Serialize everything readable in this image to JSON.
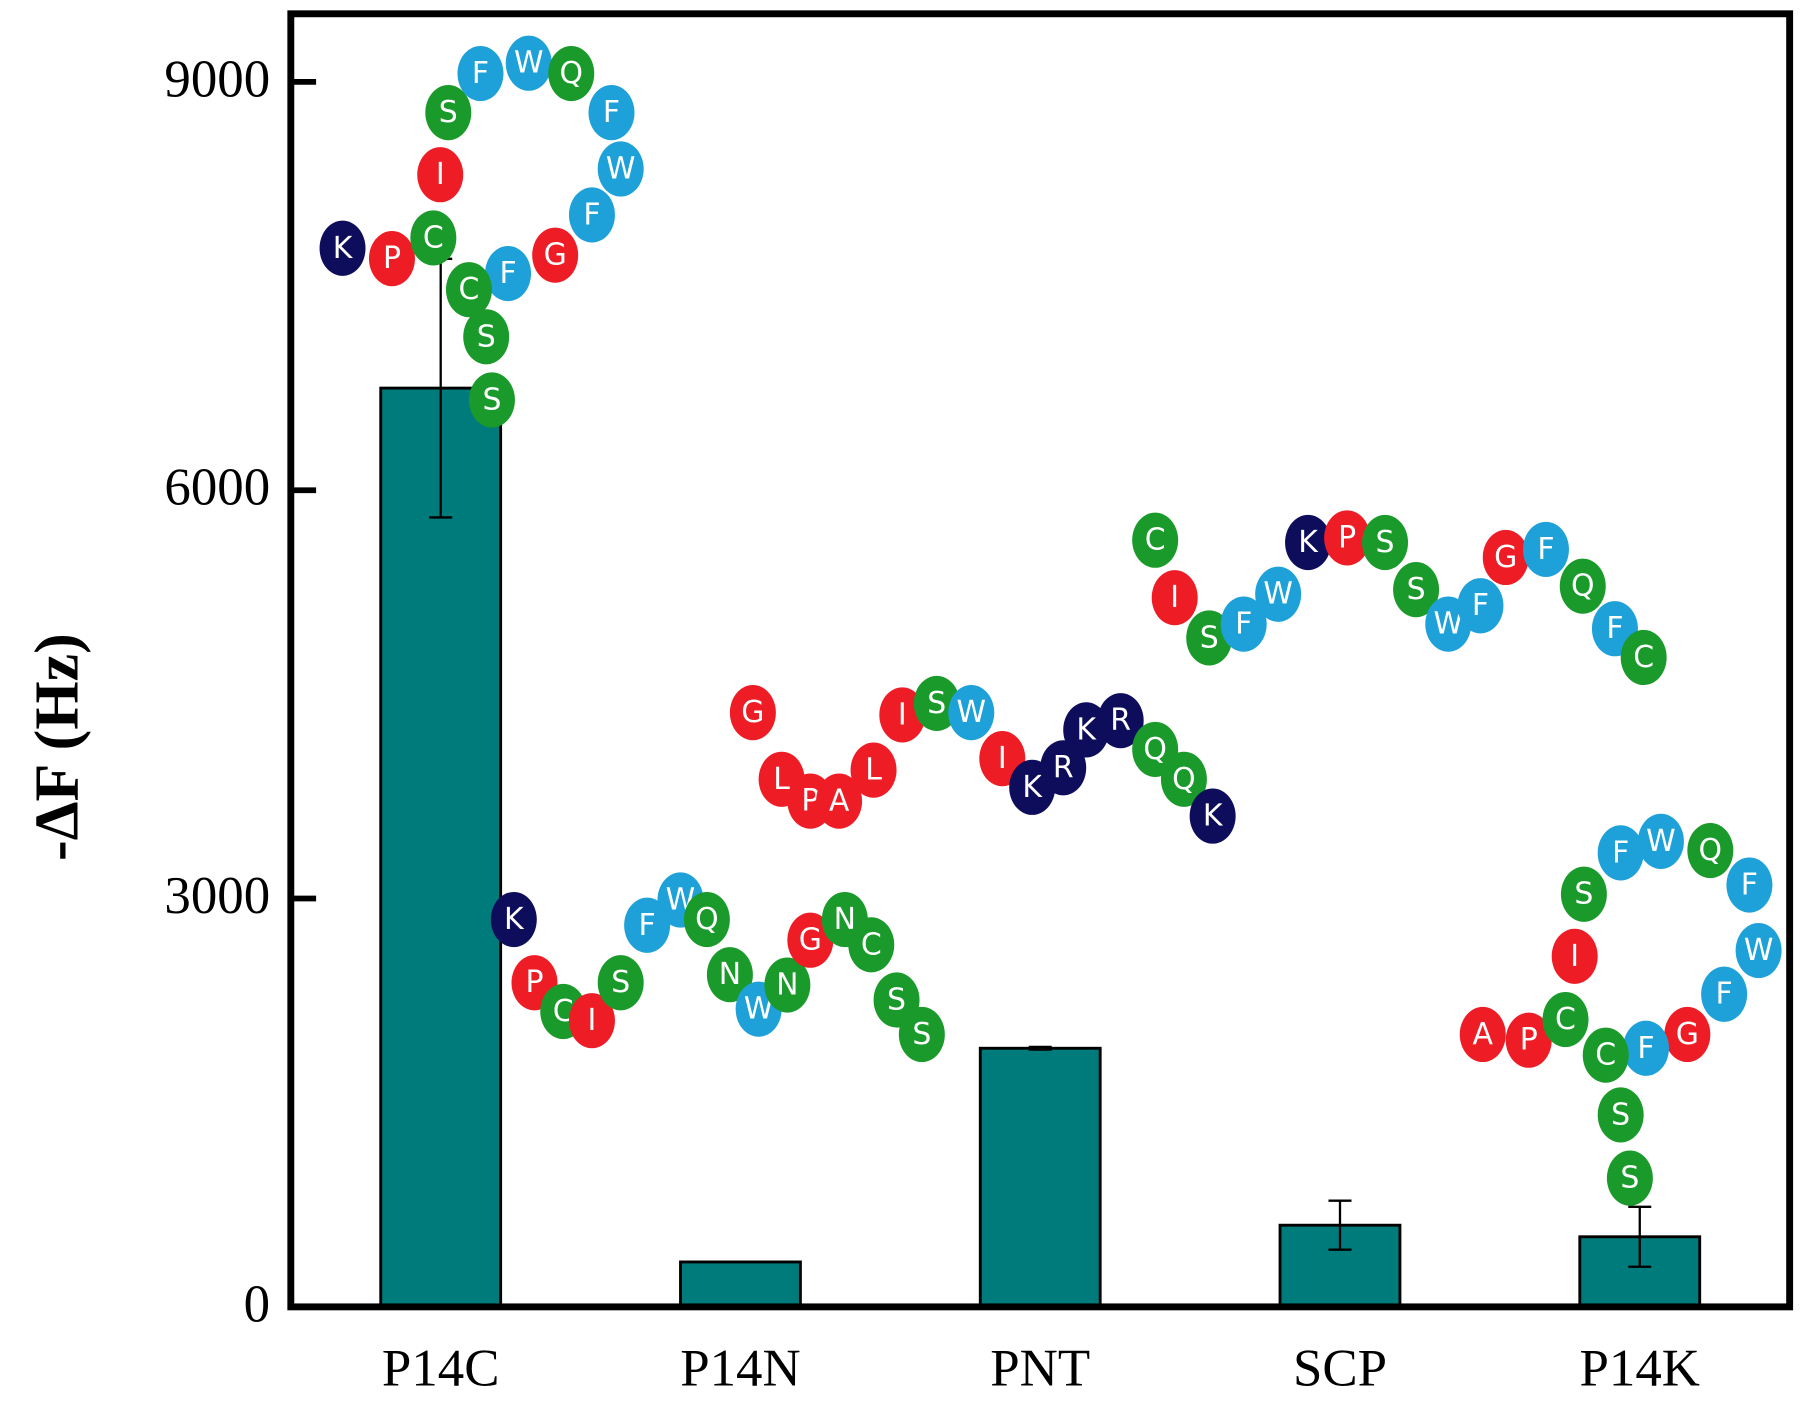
{
  "chart_data": {
    "type": "bar",
    "y_label": "-ΔF (Hz)",
    "categories": [
      "P14C",
      "P14N",
      "PNT",
      "SCP",
      "P14K"
    ],
    "values": [
      6750,
      330,
      1900,
      600,
      515
    ],
    "errors": [
      950,
      null,
      10,
      180,
      220
    ],
    "color": "#007b7b",
    "ylim": [
      0,
      9500
    ],
    "yticks": [
      0,
      3000,
      6000,
      9000
    ],
    "residue_colors": {
      "K": "#0d0d5c",
      "R": "#0d0d5c",
      "P": "#ee1c25",
      "I": "#ee1c25",
      "G": "#ee1c25",
      "A": "#ee1c25",
      "L": "#ee1c25",
      "C": "#1a9a2a",
      "S": "#1a9a2a",
      "N": "#1a9a2a",
      "Q": "#1a9a2a",
      "F": "#1ea0d8",
      "W": "#1ea0d8"
    },
    "peptides": [
      {
        "sequence": [
          "K",
          "P",
          "C",
          "I",
          "S",
          "F",
          "W",
          "Q",
          "F",
          "W",
          "F",
          "G",
          "F",
          "C",
          "S",
          "S"
        ]
      },
      {
        "sequence": [
          "K",
          "P",
          "C",
          "I",
          "S",
          "F",
          "W",
          "Q",
          "N",
          "W",
          "N",
          "G",
          "N",
          "C",
          "S",
          "S"
        ]
      },
      {
        "sequence": [
          "G",
          "L",
          "P",
          "A",
          "L",
          "I",
          "S",
          "W",
          "I",
          "K",
          "R",
          "K",
          "R",
          "Q",
          "Q",
          "K"
        ]
      },
      {
        "sequence": [
          "C",
          "I",
          "S",
          "F",
          "W",
          "K",
          "P",
          "S",
          "S",
          "W",
          "F",
          "G",
          "F",
          "Q",
          "F",
          "C"
        ]
      },
      {
        "sequence": [
          "A",
          "P",
          "C",
          "I",
          "S",
          "F",
          "W",
          "Q",
          "F",
          "W",
          "F",
          "G",
          "F",
          "C",
          "S",
          "S"
        ]
      }
    ]
  }
}
